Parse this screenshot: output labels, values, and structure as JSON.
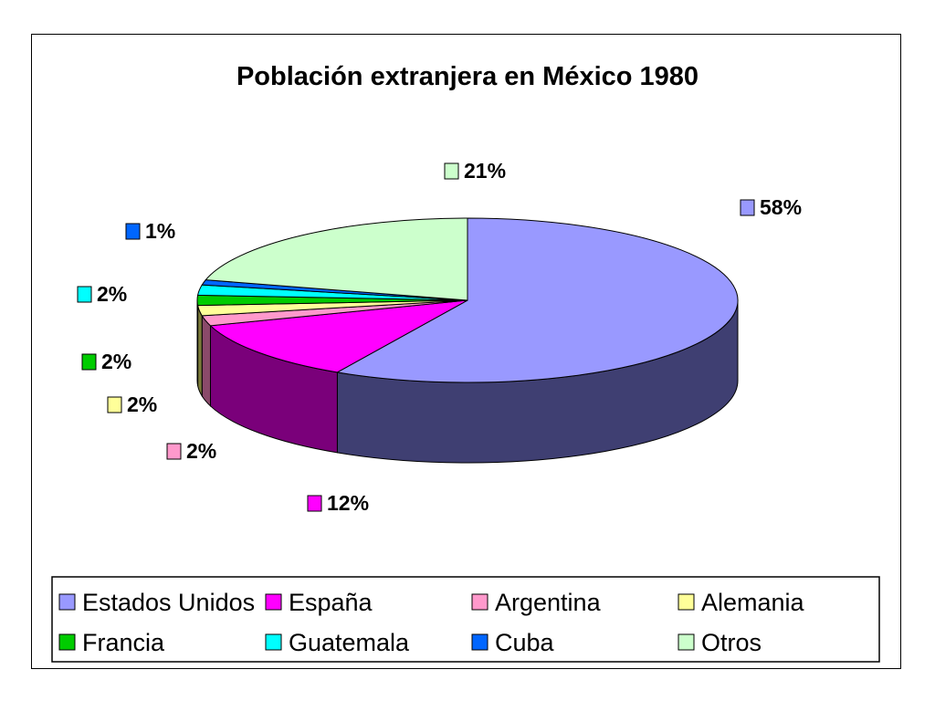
{
  "chart_data": {
    "type": "pie",
    "style": "3d-exploded-none",
    "title": "Población extranjera en México 1980",
    "legend_position": "bottom",
    "slices": [
      {
        "name": "Estados Unidos",
        "value": 58,
        "label": "58%",
        "color": "#9999FF",
        "side_color": "#3f3f72"
      },
      {
        "name": "España",
        "value": 12,
        "label": "12%",
        "color": "#FF00FF",
        "side_color": "#7a007a"
      },
      {
        "name": "Argentina",
        "value": 2,
        "label": "2%",
        "color": "#FF99CC",
        "side_color": "#8a4a6a"
      },
      {
        "name": "Alemania",
        "value": 2,
        "label": "2%",
        "color": "#FFFF99",
        "side_color": "#7a7a3a"
      },
      {
        "name": "Francia",
        "value": 2,
        "label": "2%",
        "color": "#00CC00",
        "side_color": "#005a00"
      },
      {
        "name": "Guatemala",
        "value": 2,
        "label": "2%",
        "color": "#00FFFF",
        "side_color": "#006a6a"
      },
      {
        "name": "Cuba",
        "value": 1,
        "label": "1%",
        "color": "#0066FF",
        "side_color": "#00307a"
      },
      {
        "name": "Otros",
        "value": 21,
        "label": "21%",
        "color": "#CCFFCC",
        "side_color": "#6a8a6a"
      }
    ]
  }
}
